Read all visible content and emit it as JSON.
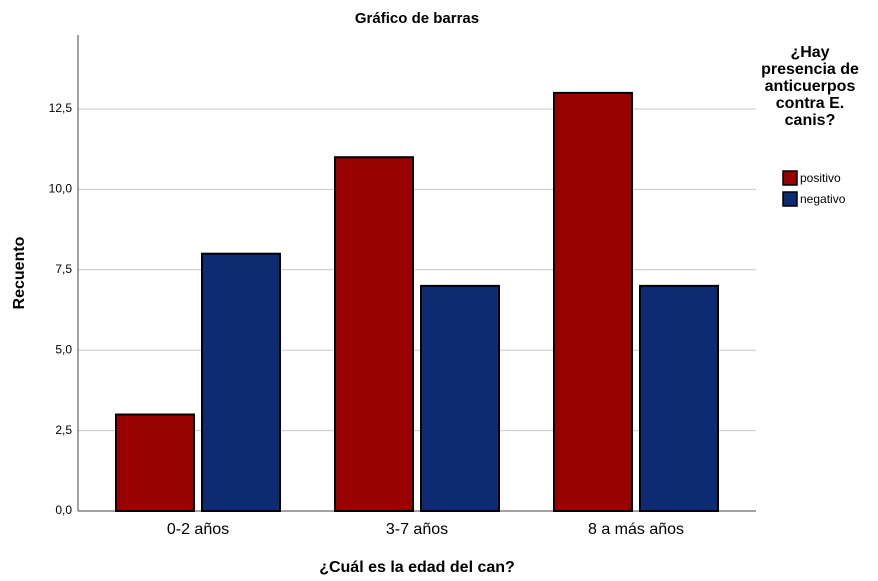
{
  "chart_data": {
    "type": "bar",
    "title": "Gráfico de barras",
    "x_label": "¿Cuál es la edad del can?",
    "y_label": "Recuento",
    "legend_title": "¿Hay presencia de anticuerpos contra E. canis?",
    "categories": [
      "0-2 años",
      "3-7 años",
      "8 a más años"
    ],
    "series": [
      {
        "name": "positivo",
        "color": "#990000",
        "values": [
          3,
          11,
          13
        ]
      },
      {
        "name": "negativo",
        "color": "#0d2b73",
        "values": [
          8,
          7,
          7
        ]
      }
    ],
    "ylim": [
      0,
      14.8
    ],
    "yticks": [
      {
        "value": 0,
        "label": "0,0"
      },
      {
        "value": 2.5,
        "label": "2,5"
      },
      {
        "value": 5,
        "label": "5,0"
      },
      {
        "value": 7.5,
        "label": "7,5"
      },
      {
        "value": 10,
        "label": "10,0"
      },
      {
        "value": 12.5,
        "label": "12,5"
      }
    ],
    "grid": true,
    "legend_position": "right"
  }
}
